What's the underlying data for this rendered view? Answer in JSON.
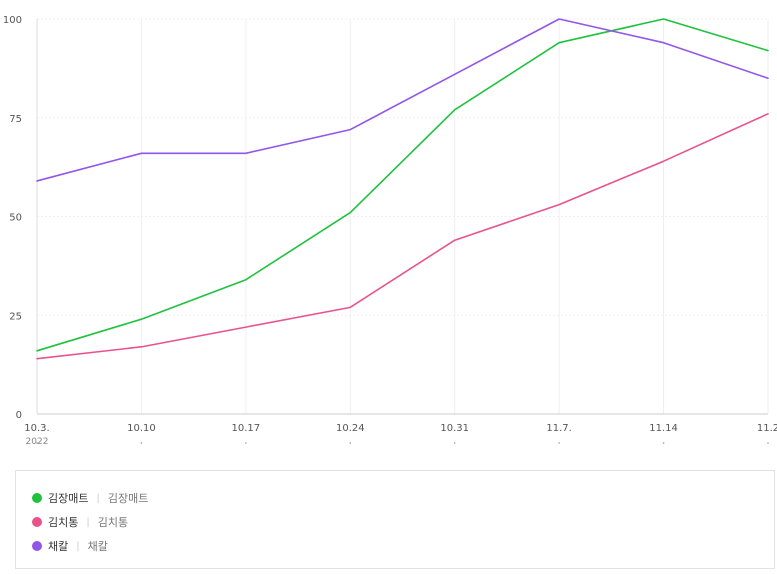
{
  "chart_data": {
    "type": "line",
    "x_labels": [
      "10.3.",
      "10.10",
      "10.17",
      "10.24",
      "10.31",
      "11.7.",
      "11.14",
      "11.2"
    ],
    "year_label": "2022",
    "y_ticks": [
      "0",
      "25",
      "50",
      "75",
      "100"
    ],
    "ylim": [
      0,
      100
    ],
    "grid": true,
    "series": [
      {
        "name": "김장매트",
        "color": "#1fc23d",
        "values": [
          16,
          24,
          34,
          51,
          77,
          94,
          100,
          92
        ]
      },
      {
        "name": "김치통",
        "color": "#e8538c",
        "values": [
          14,
          17,
          22,
          27,
          44,
          53,
          64,
          76
        ]
      },
      {
        "name": "채칼",
        "color": "#9256e8",
        "values": [
          59,
          66,
          66,
          72,
          86,
          100,
          94,
          85
        ]
      }
    ]
  },
  "legend": {
    "items": [
      {
        "name": "김장매트",
        "sub": "김장매트",
        "color": "#1fc23d"
      },
      {
        "name": "김치통",
        "sub": "김치통",
        "color": "#e8538c"
      },
      {
        "name": "채칼",
        "sub": "채칼",
        "color": "#9256e8"
      }
    ]
  }
}
